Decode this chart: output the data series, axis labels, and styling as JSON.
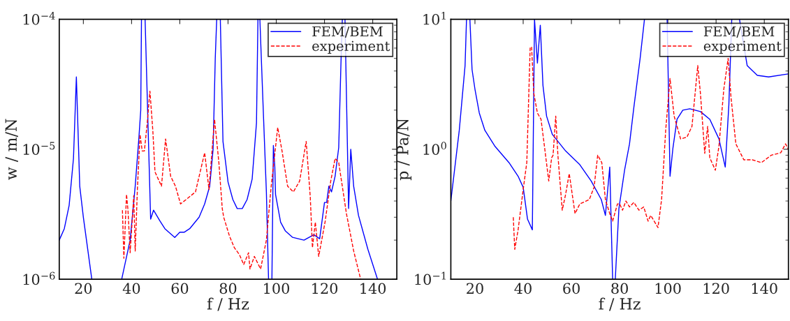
{
  "chart_data": [
    {
      "type": "line",
      "xlabel": "f / Hz",
      "ylabel": "w / m/N",
      "log": true,
      "xlim": [
        10,
        150
      ],
      "ylim": [
        1e-06,
        0.0001
      ],
      "xticks": [
        20,
        40,
        60,
        80,
        100,
        120,
        140
      ],
      "yticks": [
        {
          "value": 1e-06,
          "label": "10$^{−6}$"
        },
        {
          "value": 1e-05,
          "label": "10$^{−5}$"
        },
        {
          "value": 0.0001,
          "label": "10$^{−4}$"
        }
      ],
      "legend": "top right",
      "series": [
        {
          "name": "FEM/BEM",
          "color": "#0000ff",
          "line_style": "solid",
          "x": [
            10,
            12.1,
            14.1,
            15.9,
            17.1,
            18.5,
            20,
            23.5,
            30,
            35.9,
            39.4,
            41.5,
            43,
            43.8,
            44.1,
            44.9,
            45.6,
            47.9,
            49.1,
            51.8,
            53.8,
            57.9,
            60,
            61.8,
            64.1,
            68,
            70.3,
            72.4,
            73.8,
            74.7,
            75.3,
            76,
            76.8,
            77.9,
            80,
            82,
            83.8,
            85.9,
            87.9,
            90,
            91.8,
            92.4,
            92.8,
            93.2,
            94.7,
            95.9,
            96.8,
            97.5,
            98.2,
            98.8,
            99.4,
            99.7,
            101.8,
            103.8,
            106.8,
            111.5,
            115.6,
            118,
            120,
            120.9,
            121.8,
            122.9,
            124.4,
            125.9,
            126.8,
            127.4,
            128,
            128.5,
            130,
            130.9,
            132.1,
            134.1,
            138,
            142
          ],
          "values": [
            2e-06,
            2.45e-06,
            3.7e-06,
            8.5e-06,
            3.6e-05,
            5.2e-06,
            3e-06,
            1e-06,
            null,
            1e-06,
            2e-06,
            5.2e-06,
            1.2e-05,
            2e-05,
            0.0001,
            null,
            0.0001,
            2.9e-06,
            3.4e-06,
            2.8e-06,
            2.45e-06,
            2.1e-06,
            2.3e-06,
            2.3e-06,
            2.45e-06,
            3e-06,
            3.8e-06,
            5.2e-06,
            1e-05,
            5e-05,
            0.0001,
            null,
            0.0001,
            1.15e-05,
            5.6e-06,
            4.1e-06,
            3.5e-06,
            3.5e-06,
            4.1e-06,
            5.9e-06,
            1.6e-05,
            0.0001,
            null,
            0.0001,
            1.8e-05,
            4.7e-06,
            1e-06,
            null,
            1e-06,
            1.07e-05,
            7.3e-06,
            4.5e-06,
            2.75e-06,
            2.35e-06,
            2.1e-06,
            2e-06,
            2.2e-06,
            2.05e-06,
            3.9e-06,
            3.9e-06,
            5.2e-06,
            4.7e-06,
            6.2e-06,
            1.03e-05,
            4.4e-05,
            0.0001,
            null,
            0.0001,
            3.5e-06,
            1e-05,
            5.2e-06,
            3.1e-06,
            1.7e-06,
            1e-06
          ]
        },
        {
          "name": "experiment",
          "color": "#ff0000",
          "line_style": "dashed",
          "x": [
            36.2,
            36.8,
            37.9,
            38.5,
            39.4,
            40.9,
            41.5,
            42.4,
            43.5,
            44.4,
            45.3,
            46.5,
            47.6,
            48.8,
            49.7,
            52.4,
            54.1,
            56.2,
            58.2,
            60.3,
            62.6,
            66.5,
            70.3,
            72.1,
            74.4,
            76.2,
            77.6,
            78.2,
            80.6,
            82.6,
            84.7,
            86.5,
            88.5,
            89.1,
            90.9,
            93.5,
            95.9,
            97.9,
            100.6,
            102.4,
            104.7,
            107.1,
            109.7,
            112.4,
            114.1,
            115,
            116.2,
            117.6,
            120.3,
            122.6,
            124.4,
            125.9,
            129.1,
            132.1,
            135
          ],
          "values": [
            3.4e-06,
            1.45e-06,
            4.5e-06,
            3.4e-06,
            1.6e-06,
            4.4e-06,
            1.65e-06,
            4.9e-06,
            1.3e-05,
            9.7e-06,
            9.7e-06,
            1.6e-05,
            2.8e-05,
            1.4e-05,
            6.7e-06,
            5.2e-06,
            1.2e-05,
            6.2e-06,
            5.2e-06,
            3.8e-06,
            4.1e-06,
            4.7e-06,
            9.4e-06,
            4.9e-06,
            1.7e-05,
            7.9e-06,
            3.5e-06,
            3e-06,
            2.15e-06,
            1.75e-06,
            1.55e-06,
            1.3e-06,
            1.6e-06,
            1.2e-06,
            1.5e-06,
            1.2e-06,
            2e-06,
            5.2e-06,
            1.47e-05,
            9.7e-06,
            5.2e-06,
            4.7e-06,
            5.7e-06,
            1.15e-05,
            4.3e-06,
            1.75e-06,
            2.75e-06,
            1.5e-06,
            2.8e-06,
            5.7e-06,
            8.5e-06,
            7.9e-06,
            3.2e-06,
            1.65e-06,
            1e-06
          ]
        }
      ]
    },
    {
      "type": "line",
      "xlabel": "f / Hz",
      "ylabel": "p / Pa/N",
      "log": true,
      "xlim": [
        10,
        150
      ],
      "ylim": [
        0.1,
        10
      ],
      "xticks": [
        20,
        40,
        60,
        80,
        100,
        120,
        140
      ],
      "yticks": [
        {
          "value": 0.1,
          "label": "10$^{−1}$"
        },
        {
          "value": 1,
          "label": "10$^{0}$"
        },
        {
          "value": 10,
          "label": "10$^{1}$"
        }
      ],
      "legend": "top right",
      "series": [
        {
          "name": "FEM/BEM",
          "color": "#0000ff",
          "line_style": "solid",
          "x": [
            10,
            13.5,
            15.9,
            16.5,
            17.2,
            17.9,
            18.8,
            20,
            21.8,
            24.1,
            28.2,
            34.1,
            37.9,
            40,
            41.8,
            43.8,
            44.7,
            45.9,
            47.1,
            48.2,
            49.7,
            52.1,
            57.6,
            63.5,
            68.2,
            72.4,
            74.1,
            75.9,
            77.1,
            77.6,
            78.2,
            79.7,
            82.1,
            84.1,
            85.9,
            88.5,
            90.3,
            95,
            99.7,
            100.9,
            102.1,
            103.8,
            106.2,
            109.1,
            113.5,
            117.4,
            121.2,
            123.8,
            125.3,
            126.5,
            128,
            129.7,
            132.9,
            137.1,
            141.8,
            150
          ],
          "values": [
            0.4,
            1.4,
            4.4,
            10,
            null,
            10,
            4.1,
            2.9,
            1.9,
            1.4,
            1.06,
            0.79,
            0.62,
            0.51,
            0.29,
            0.24,
            10,
            4.6,
            9.0,
            3.1,
            1.8,
            1.3,
            0.97,
            0.76,
            0.57,
            0.41,
            0.31,
            0.73,
            0.1,
            null,
            0.1,
            0.35,
            0.7,
            1.1,
            2.1,
            5.0,
            10,
            null,
            10,
            0.62,
            1.02,
            1.7,
            2.0,
            2.05,
            1.95,
            1.7,
            1.2,
            0.73,
            2.2,
            10,
            null,
            10,
            4.4,
            3.7,
            3.6,
            3.8
          ]
        },
        {
          "name": "experiment",
          "color": "#ff0000",
          "line_style": "dashed",
          "x": [
            35.9,
            36.5,
            37.9,
            40,
            41.5,
            42.9,
            43.5,
            44.4,
            45.9,
            47.4,
            48.8,
            50.6,
            51.8,
            52.4,
            53.5,
            54.4,
            56.2,
            57.6,
            59.1,
            61.5,
            63.5,
            67.4,
            69.4,
            70.9,
            72.6,
            74.1,
            75.9,
            77.1,
            79.1,
            80,
            81.2,
            82.6,
            84.1,
            85.9,
            88,
            90,
            91.8,
            92.9,
            95.9,
            97.4,
            99.1,
            100.9,
            102.6,
            105.3,
            107.9,
            110,
            112.4,
            113.5,
            115.3,
            116.5,
            117.4,
            119.7,
            121.2,
            123.2,
            125,
            126.2,
            128.2,
            131.5,
            135,
            138.8,
            142.9,
            146.8,
            148.8,
            150
          ],
          "values": [
            0.3,
            0.17,
            0.24,
            0.49,
            0.79,
            6.1,
            6.1,
            2.7,
            1.9,
            1.7,
            1.06,
            0.57,
            0.86,
            0.9,
            1.8,
            0.9,
            0.34,
            0.45,
            0.65,
            0.32,
            0.38,
            0.41,
            0.51,
            0.9,
            0.79,
            0.41,
            0.32,
            0.28,
            0.38,
            0.38,
            0.34,
            0.4,
            0.36,
            0.39,
            0.34,
            0.36,
            0.28,
            0.31,
            0.25,
            0.41,
            1.4,
            3.5,
            1.8,
            1.2,
            1.24,
            1.5,
            4.4,
            2.7,
            0.93,
            1.5,
            0.86,
            0.69,
            1.06,
            2.9,
            5.0,
            2.5,
            1.1,
            0.83,
            0.83,
            0.79,
            0.9,
            0.94,
            1.1,
            1.0
          ]
        }
      ]
    }
  ]
}
